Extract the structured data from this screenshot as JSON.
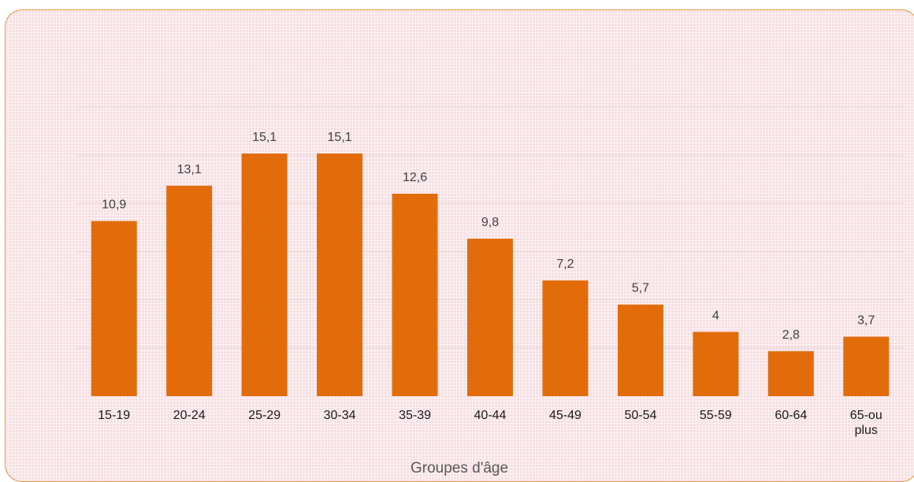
{
  "chart_data": {
    "type": "bar",
    "categories": [
      "15-19",
      "20-24",
      "25-29",
      "30-34",
      "35-39",
      "40-44",
      "45-49",
      "50-54",
      "55-59",
      "60-64",
      "65-ou plus"
    ],
    "values": [
      10.9,
      13.1,
      15.1,
      15.1,
      12.6,
      9.8,
      7.2,
      5.7,
      4,
      2.8,
      3.7
    ],
    "value_labels": [
      "10,9",
      "13,1",
      "15,1",
      "15,1",
      "12,6",
      "9,8",
      "7,2",
      "5,7",
      "4",
      "2,8",
      "3,7"
    ],
    "title": "",
    "xlabel": "Groupes d'âge",
    "ylabel": "",
    "ylim": [
      0,
      18
    ],
    "grid": true,
    "legend": "none",
    "colors": {
      "bar": "#e36c0a",
      "label_text": "#404040",
      "gridline": "#e9d6d8",
      "frame_border": "#e8913a"
    }
  }
}
